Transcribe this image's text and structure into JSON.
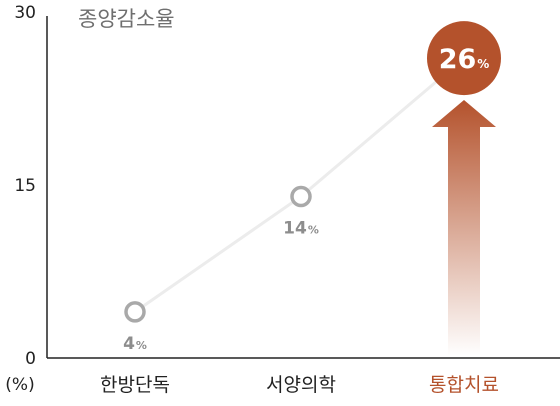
{
  "chart_data": {
    "type": "line",
    "title": "종양감소율",
    "ylabel": "(%)",
    "ylim": [
      0,
      30
    ],
    "yticks": [
      0,
      15,
      30
    ],
    "categories": [
      "한방단독",
      "서양의학",
      "통합치료"
    ],
    "values": [
      4,
      14,
      26
    ],
    "data_labels": [
      "4",
      "14",
      "26"
    ],
    "value_suffix": "%",
    "highlight_index": 2,
    "grid": false,
    "colors": {
      "accent": "#b4522c",
      "marker": "#a9a9a9",
      "line": "#ececec",
      "axis": "#222222",
      "arrow_top": "#b4522c",
      "arrow_bottom": "#ffffff"
    }
  }
}
